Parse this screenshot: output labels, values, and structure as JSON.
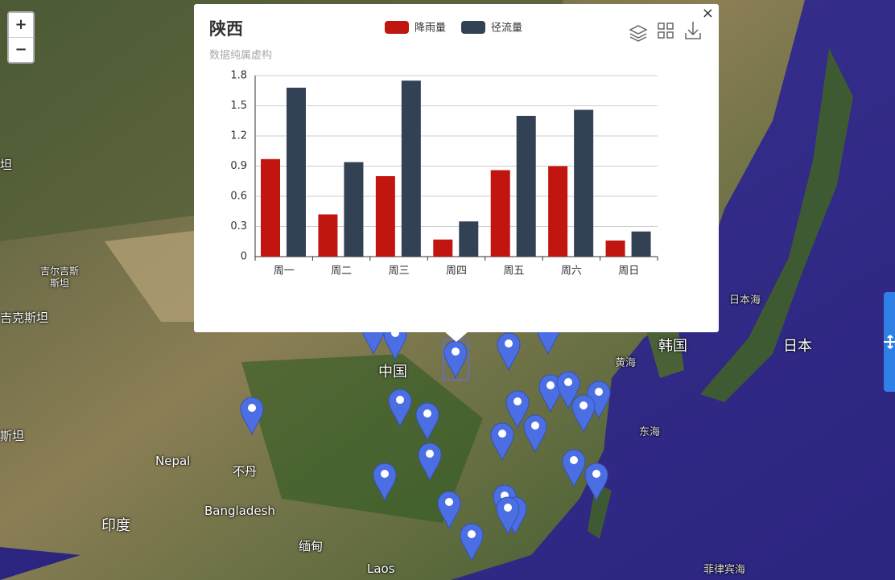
{
  "map": {
    "labels": [
      "坦",
      "吉尔吉斯\n斯坦",
      "吉克斯坦",
      "中国",
      "日本海",
      "韩国",
      "日本",
      "黄海",
      "东海",
      "斯坦",
      "Nepal",
      "不丹",
      "Bangladesh",
      "印度",
      "缅甸",
      "Laos",
      "菲律宾海"
    ],
    "zoom_in": "+",
    "zoom_out": "−"
  },
  "popup": {
    "close": "×"
  },
  "chart_data": {
    "type": "bar",
    "title": "陕西",
    "subtitle": "数据纯属虚构",
    "categories": [
      "周一",
      "周二",
      "周三",
      "周四",
      "周五",
      "周六",
      "周日"
    ],
    "series": [
      {
        "name": "降雨量",
        "color": "#c1150f",
        "values": [
          0.97,
          0.42,
          0.8,
          0.17,
          0.86,
          0.9,
          0.16
        ]
      },
      {
        "name": "径流量",
        "color": "#334155",
        "values": [
          1.68,
          0.94,
          1.75,
          0.35,
          1.4,
          1.46,
          0.25
        ]
      }
    ],
    "ylim": [
      0,
      1.8
    ],
    "yticks": [
      0,
      0.3,
      0.6,
      0.9,
      1.2,
      1.5,
      1.8
    ],
    "grid": true
  }
}
